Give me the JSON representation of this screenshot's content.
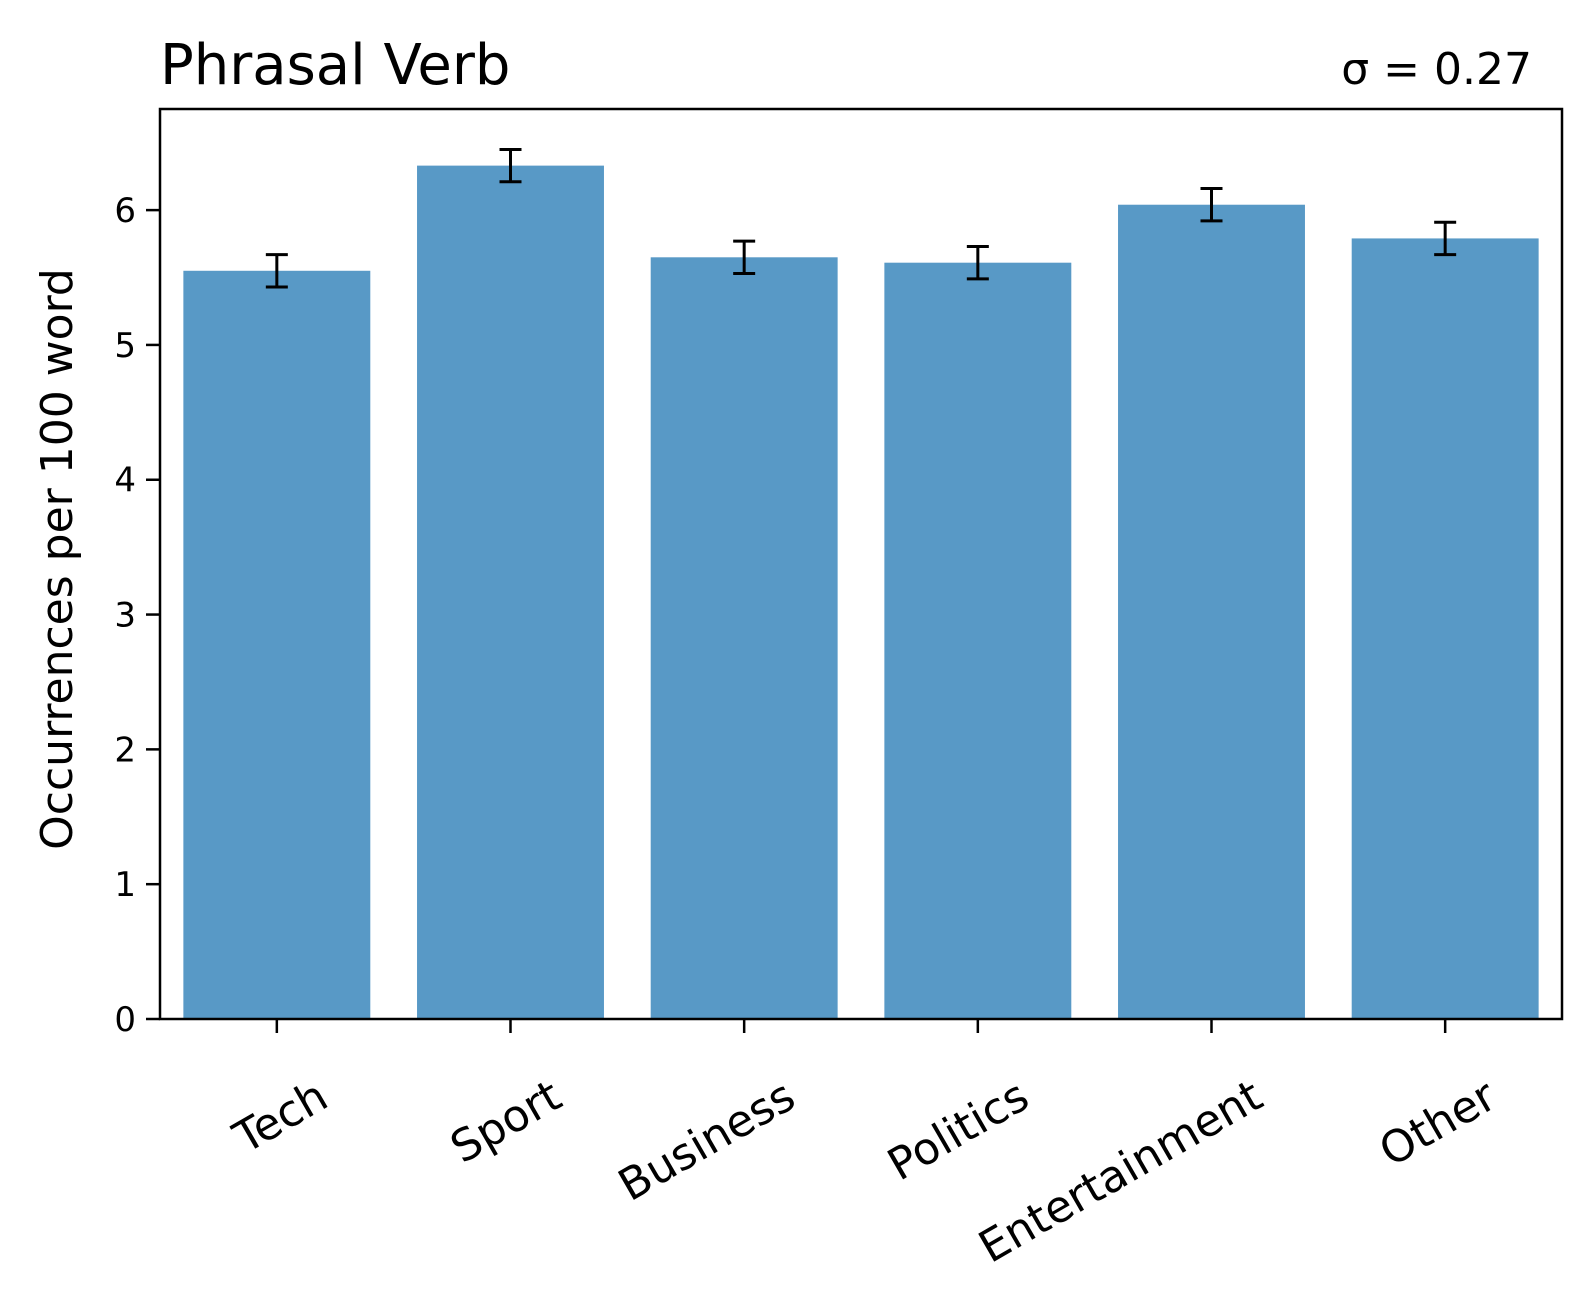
{
  "chart_data": {
    "type": "bar",
    "title": "Phrasal Verb",
    "annotation": "σ = 0.27",
    "xlabel": "",
    "ylabel": "Occurrences per 100 word",
    "categories": [
      "Tech",
      "Sport",
      "Business",
      "Politics",
      "Entertainment",
      "Other"
    ],
    "values": [
      5.55,
      6.33,
      5.65,
      5.61,
      6.04,
      5.79
    ],
    "errors": [
      0.12,
      0.12,
      0.12,
      0.12,
      0.12,
      0.12
    ],
    "ylim": [
      0,
      6.75
    ],
    "yticks": [
      "0",
      "1",
      "2",
      "3",
      "4",
      "5",
      "6"
    ],
    "grid": false,
    "colors": {
      "bar": "#5899c6",
      "error": "#000000",
      "axis": "#000000"
    }
  }
}
